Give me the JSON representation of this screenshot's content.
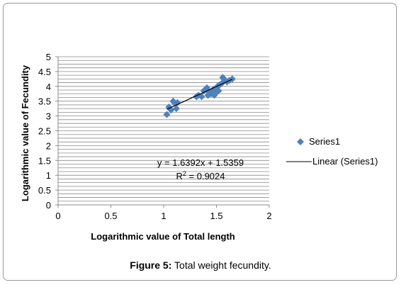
{
  "caption": {
    "label": "Figure 5:",
    "text": " Total weight fecundity."
  },
  "colors": {
    "marker": "#4f81bd",
    "trendline": "#000000",
    "grid": "#8c8c8c",
    "frame": "#9a9a9a"
  },
  "chart_data": {
    "type": "scatter",
    "title": "",
    "xlabel": "Logarithmic value of Total length",
    "ylabel": "Logarithmic value of Fecundity",
    "xlim": [
      0,
      2
    ],
    "ylim": [
      0,
      5
    ],
    "xticks": [
      0,
      0.5,
      1,
      1.5,
      2
    ],
    "xtick_labels": [
      "0",
      "0.5",
      "1",
      "1.5",
      "2"
    ],
    "yticks": [
      0,
      0.5,
      1,
      1.5,
      2,
      2.5,
      3,
      3.5,
      4,
      4.5,
      5
    ],
    "ytick_labels": [
      "0",
      "0.5",
      "1",
      "1.5",
      "2",
      "2.5",
      "3",
      "3.5",
      "4",
      "4.5",
      "5"
    ],
    "grid": true,
    "legend": {
      "placement": "right",
      "entries": [
        "Series1",
        "Linear (Series1)"
      ]
    },
    "series": [
      {
        "name": "Series1",
        "marker": "diamond",
        "x": [
          1.03,
          1.05,
          1.07,
          1.09,
          1.1,
          1.12,
          1.13,
          1.31,
          1.33,
          1.36,
          1.38,
          1.4,
          1.41,
          1.42,
          1.43,
          1.45,
          1.46,
          1.47,
          1.48,
          1.5,
          1.51,
          1.52,
          1.53,
          1.55,
          1.56,
          1.57,
          1.6,
          1.62,
          1.65
        ],
        "y": [
          3.05,
          3.3,
          3.2,
          3.5,
          3.45,
          3.25,
          3.45,
          3.65,
          3.7,
          3.65,
          3.85,
          3.9,
          3.95,
          3.7,
          3.8,
          3.75,
          3.85,
          3.9,
          3.7,
          3.8,
          4.0,
          3.85,
          4.05,
          4.1,
          4.3,
          4.25,
          4.15,
          4.2,
          4.25
        ]
      }
    ],
    "trendline": {
      "name": "Linear (Series1)",
      "slope": 1.6392,
      "intercept": 1.5359,
      "x_range": [
        1.03,
        1.65
      ],
      "equation": "y = 1.6392x + 1.5359",
      "r_squared_prefix": "R",
      "r_squared_sup": "2",
      "r_squared_value": " = 0.9024"
    }
  }
}
